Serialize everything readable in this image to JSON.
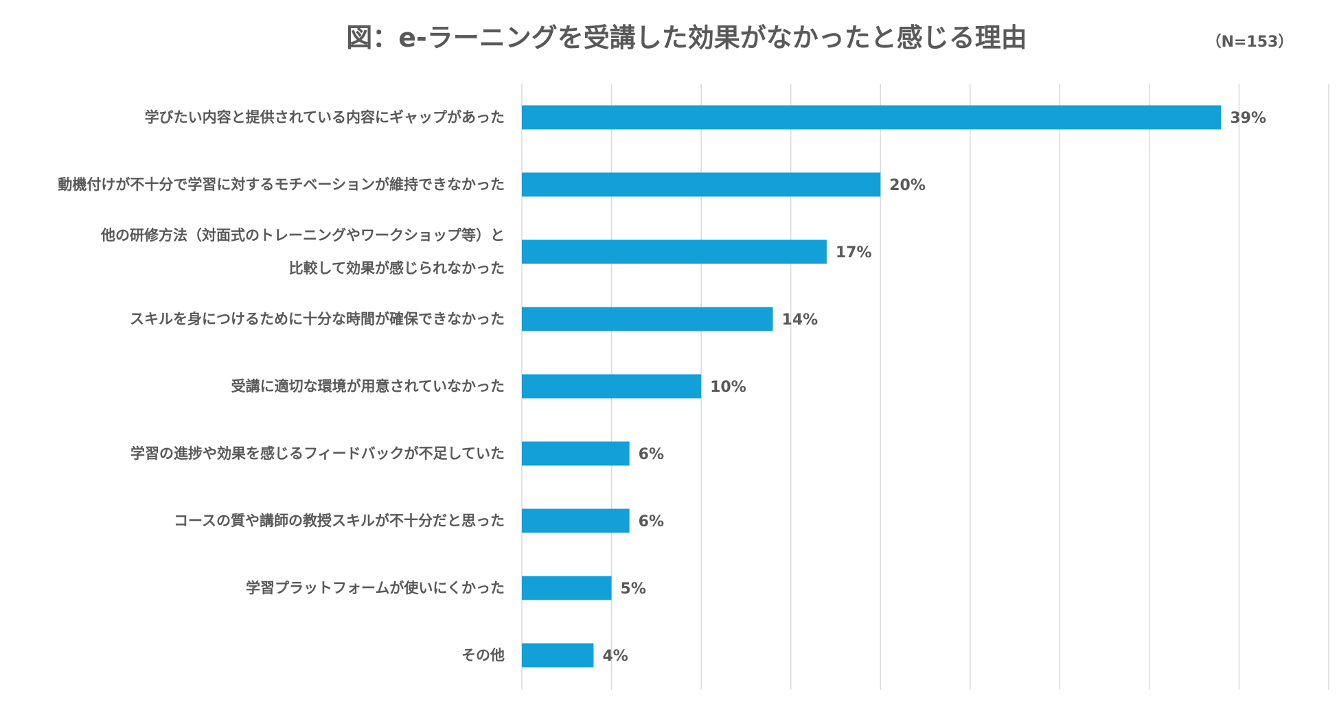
{
  "colors": {
    "bar": "#139fd7",
    "grid": "#d9d9d9",
    "text": "#595959"
  },
  "chart_data": {
    "type": "bar",
    "orientation": "horizontal",
    "title": "図：e-ラーニングを受講した効果がなかったと感じる理由",
    "note": "（N=153）",
    "unit": "%",
    "xlim": [
      0,
      45
    ],
    "grid": true,
    "categories": [
      [
        "学びたい内容と提供されている内容にギャップがあった"
      ],
      [
        "動機付けが不十分で学習に対するモチベーションが維持できなかった"
      ],
      [
        "他の研修方法（対面式のトレーニングやワークショップ等）と",
        "比較して効果が感じられなかった"
      ],
      [
        "スキルを身につけるために十分な時間が確保できなかった"
      ],
      [
        "受講に適切な環境が用意されていなかった"
      ],
      [
        "学習の進捗や効果を感じるフィードバックが不足していた"
      ],
      [
        "コースの質や講師の教授スキルが不十分だと思った"
      ],
      [
        "学習プラットフォームが使いにくかった"
      ],
      [
        "その他"
      ]
    ],
    "values": [
      39,
      20,
      17,
      14,
      10,
      6,
      6,
      5,
      4
    ],
    "value_labels": [
      "39%",
      "20%",
      "17%",
      "14%",
      "10%",
      "6%",
      "6%",
      "5%",
      "4%"
    ]
  }
}
